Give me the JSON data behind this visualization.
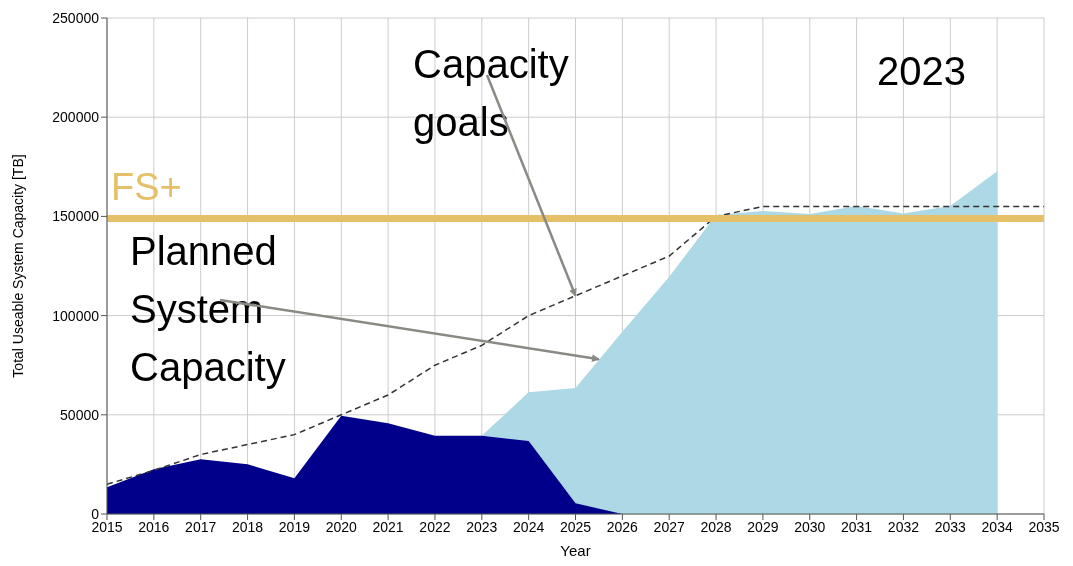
{
  "chart_data": {
    "type": "area",
    "xlabel": "Year",
    "ylabel": "Total Useable System Capacity [TB]",
    "x": [
      2015,
      2016,
      2017,
      2018,
      2019,
      2020,
      2021,
      2022,
      2023,
      2024,
      2025,
      2026,
      2027,
      2028,
      2029,
      2030,
      2031,
      2032,
      2033,
      2034,
      2035
    ],
    "series": [
      {
        "color": "#add8e6",
        "values": [
          null,
          null,
          null,
          null,
          null,
          null,
          null,
          null,
          39400,
          61400,
          63500,
          91900,
          119600,
          150700,
          152700,
          151200,
          155200,
          151500,
          155200,
          172800,
          null
        ]
      },
      {
        "color": "#00008b",
        "values": [
          13500,
          22600,
          27600,
          25100,
          18000,
          49500,
          45800,
          39400,
          39400,
          36800,
          5400,
          0,
          null,
          null,
          null,
          null,
          null,
          null,
          null,
          null,
          null
        ]
      },
      {
        "type": "line",
        "color": "#333333",
        "line_style": "dashed",
        "values": [
          15000,
          22000,
          30000,
          35000,
          40000,
          50000,
          60000,
          75000,
          85000,
          100000,
          110000,
          120000,
          130000,
          150000,
          155000,
          155000,
          155000,
          155000,
          155000,
          155000,
          155000
        ]
      }
    ],
    "xlim": [
      2015,
      2035
    ],
    "xticks": [
      2015,
      2016,
      2017,
      2018,
      2019,
      2020,
      2021,
      2022,
      2023,
      2024,
      2025,
      2026,
      2027,
      2028,
      2029,
      2030,
      2031,
      2032,
      2033,
      2034,
      2035
    ],
    "ylim": [
      0,
      250000
    ],
    "yticks": [
      0,
      50000,
      100000,
      150000,
      200000,
      250000
    ],
    "grid": true,
    "marker": "none",
    "ref_lines": [
      {
        "axis": "y",
        "value": 149000,
        "label": "FS+",
        "color": "#e6c068"
      }
    ],
    "annotations": [
      {
        "text": "Capacity goals",
        "x": 2025,
        "y": 110000
      },
      {
        "text": "Planned System Capacity",
        "x": 2025.5,
        "y": 78000
      },
      "2023"
    ]
  }
}
